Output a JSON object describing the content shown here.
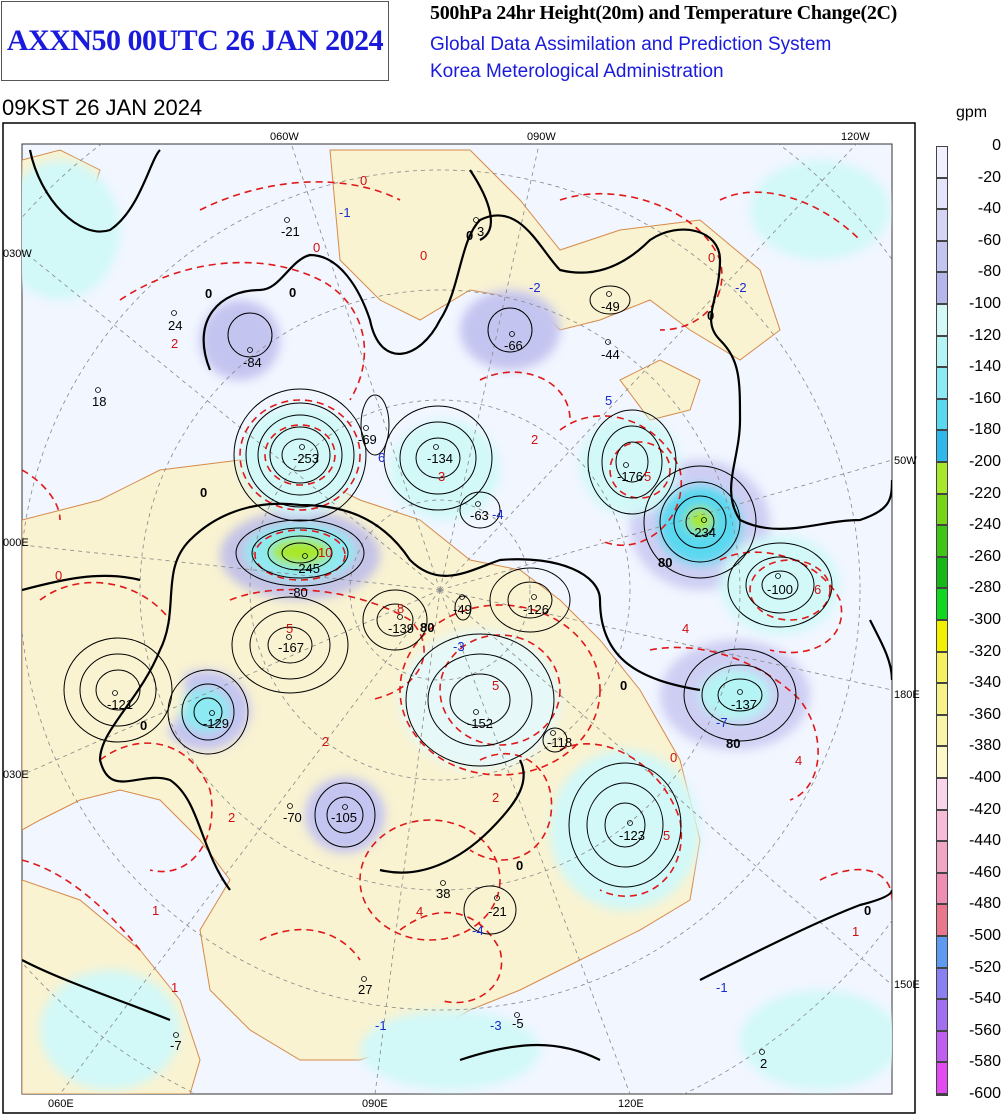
{
  "header": {
    "chart_id": "AXXN50 00UTC 26 JAN 2024",
    "title": "500hPa 24hr Height(20m) and Temperature Change(2C)",
    "system": "Global Data Assimilation and Prediction System",
    "agency": "Korea Meterological Administration",
    "valid_time": "09KST 26 JAN 2024"
  },
  "legend": {
    "unit": "gpm",
    "levels": [
      "0",
      "-20",
      "-40",
      "-60",
      "-80",
      "-100",
      "-120",
      "-140",
      "-160",
      "-180",
      "-200",
      "-220",
      "-240",
      "-260",
      "-280",
      "-300",
      "-320",
      "-340",
      "-360",
      "-380",
      "-400",
      "-420",
      "-440",
      "-460",
      "-480",
      "-500",
      "-520",
      "-540",
      "-560",
      "-580",
      "-600"
    ],
    "colors": [
      "#f0f0ff",
      "#e4e4fa",
      "#d4d4f4",
      "#c4c4f0",
      "#b6b6ec",
      "#d2f8f8",
      "#b4f4f4",
      "#8eeaf2",
      "#5ad8f0",
      "#30b8ec",
      "#a8e82c",
      "#78d418",
      "#40c418",
      "#18b818",
      "#10d820",
      "#f0f000",
      "#f4f060",
      "#f8f088",
      "#f8f4a8",
      "#fcf8c8",
      "#fad4e8",
      "#f6bcd8",
      "#f2a6c6",
      "#ee8eb4",
      "#e8788c",
      "#5e9af0",
      "#8a80f2",
      "#a070f0",
      "#c05ef0",
      "#e04cf0",
      "#f040e8"
    ]
  },
  "map": {
    "coord_labels": {
      "top": [
        "060W",
        "090W",
        "120W"
      ],
      "left": [
        "030W",
        "000E",
        "030E"
      ],
      "right": [
        "50W",
        "180E",
        "150E"
      ],
      "bottom": [
        "060E",
        "090E",
        "120E"
      ]
    },
    "centers_black": [
      "-21",
      "3",
      "24",
      "18",
      "-84",
      "-66",
      "-49",
      "-44",
      "-253",
      "-69",
      "-134",
      "-176",
      "-63",
      "-234",
      "-245",
      "-100",
      "-80",
      "-49",
      "-126",
      "-167",
      "-139",
      "-121",
      "-129",
      "-152",
      "-137",
      "-118",
      "-70",
      "-105",
      "-123",
      "38",
      "-21",
      "27",
      "-5",
      "-7",
      "2"
    ],
    "centers_red": [
      "2",
      "10",
      "6",
      "2",
      "3",
      "5",
      "5",
      "8",
      "2",
      "2",
      "5",
      "4",
      "4",
      "5",
      "2",
      "1",
      "1",
      "4",
      "1",
      "6"
    ],
    "centers_blue": [
      "-1",
      "-2",
      "-2",
      "6",
      "5",
      "-4",
      "-3",
      "-7",
      "-4",
      "-3",
      "-1",
      "-1"
    ],
    "contour_labels_black": [
      "0",
      "0",
      "80",
      "80",
      "80",
      "0",
      "0",
      "0",
      "0",
      "0",
      "0",
      "0"
    ],
    "contour_labels_red": [
      "0",
      "0",
      "0",
      "0",
      "0",
      "0"
    ]
  }
}
